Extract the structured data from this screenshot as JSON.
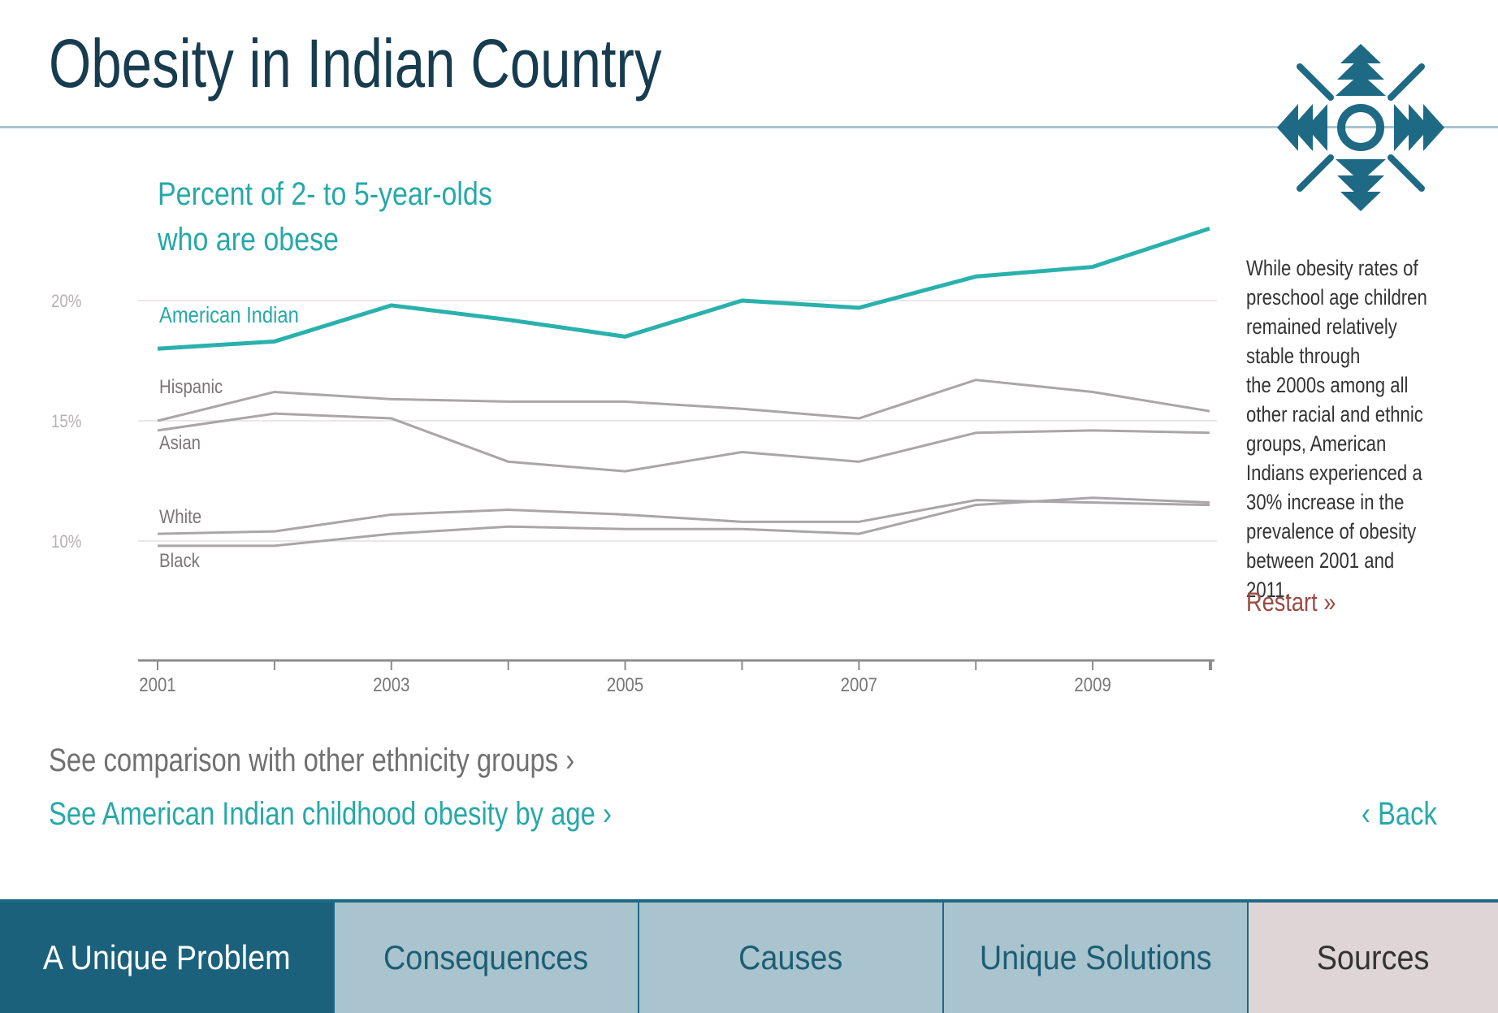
{
  "page": {
    "title": "Obesity in Indian Country"
  },
  "colors": {
    "accent": "#2ab1ad",
    "series_gray": "#aaa5a8",
    "title": "#173c4f",
    "nav_active": "#1b617c",
    "nav_inactive": "#a9c4cf",
    "restart": "#9b4a42"
  },
  "logo": {
    "icon": "four-directions-icon"
  },
  "chart_data": {
    "type": "line",
    "title": "Percent of 2- to 5-year-olds\nwho are obese",
    "x": [
      2001,
      2002,
      2003,
      2004,
      2005,
      2006,
      2007,
      2008,
      2009,
      2010
    ],
    "x_tick_labels": [
      "2001",
      "2003",
      "2005",
      "2007",
      "2009"
    ],
    "x_tick_values": [
      2001,
      2003,
      2005,
      2007,
      2009
    ],
    "y_tick_labels": [
      "20%",
      "15%",
      "10%"
    ],
    "y_tick_values": [
      20,
      15,
      10
    ],
    "ylim": [
      5,
      23
    ],
    "grid": true,
    "series": [
      {
        "name": "American Indian",
        "highlight": true,
        "values": [
          18.0,
          18.3,
          19.8,
          19.2,
          18.5,
          20.0,
          19.7,
          21.0,
          21.4,
          23.0
        ]
      },
      {
        "name": "Hispanic",
        "values": [
          15.0,
          16.2,
          15.9,
          15.8,
          15.8,
          15.5,
          15.1,
          16.7,
          16.2,
          15.4
        ]
      },
      {
        "name": "Asian",
        "values": [
          14.6,
          15.3,
          15.1,
          13.3,
          12.9,
          13.7,
          13.3,
          14.5,
          14.6,
          14.5
        ]
      },
      {
        "name": "White",
        "values": [
          10.3,
          10.4,
          11.1,
          11.3,
          11.1,
          10.8,
          10.8,
          11.7,
          11.6,
          11.5
        ]
      },
      {
        "name": "Black",
        "values": [
          9.8,
          9.8,
          10.3,
          10.6,
          10.5,
          10.5,
          10.3,
          11.5,
          11.8,
          11.6
        ]
      }
    ]
  },
  "side_note": {
    "text": "While obesity rates of\npreschool age children\nremained relatively\nstable through\nthe 2000s among all\nother racial and ethnic\ngroups, American\nIndians experienced a\n30% increase in the\nprevalence of obesity\nbetween 2001 and 2011.",
    "restart_label": "Restart »"
  },
  "links": {
    "compare": "See comparison with other ethnicity groups ›",
    "by_age": "See American Indian childhood obesity by age ›",
    "back": "‹ Back"
  },
  "nav": {
    "tabs": [
      {
        "label": "A Unique Problem",
        "active": true
      },
      {
        "label": "Consequences"
      },
      {
        "label": "Causes"
      },
      {
        "label": "Unique Solutions"
      },
      {
        "label": "Sources"
      }
    ]
  }
}
